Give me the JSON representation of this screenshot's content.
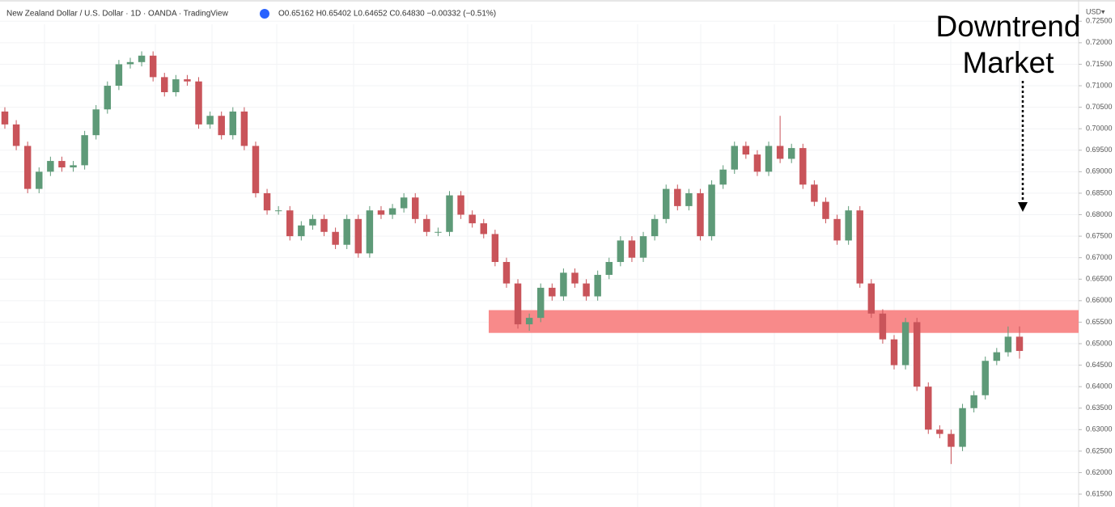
{
  "chart_data": {
    "type": "candlestick",
    "title": "New Zealand Dollar / U.S. Dollar · 1D · OANDA · TradingView",
    "subtitle": "O0.65162 H0.65402 L0.64652 C0.64830 −0.00332 (−0.51%)",
    "currency_label": "USD▾",
    "annotation": [
      "Downtrend",
      "Market"
    ],
    "up_color": "#5e9a78",
    "down_color": "#c9545a",
    "grid": true,
    "zone": {
      "low": 0.6525,
      "high": 0.6578,
      "color": "#f88a8a"
    },
    "ylim": [
      0.612,
      0.7275
    ],
    "yticks": [
      {
        "value": 0.615,
        "label": "0.61500"
      },
      {
        "value": 0.62,
        "label": "0.62000"
      },
      {
        "value": 0.625,
        "label": "0.62500"
      },
      {
        "value": 0.63,
        "label": "0.63000"
      },
      {
        "value": 0.635,
        "label": "0.63500"
      },
      {
        "value": 0.64,
        "label": "0.64000"
      },
      {
        "value": 0.645,
        "label": "0.64500"
      },
      {
        "value": 0.65,
        "label": "0.65000"
      },
      {
        "value": 0.655,
        "label": "0.65500"
      },
      {
        "value": 0.66,
        "label": "0.66000"
      },
      {
        "value": 0.665,
        "label": "0.66500"
      },
      {
        "value": 0.67,
        "label": "0.67000"
      },
      {
        "value": 0.675,
        "label": "0.67500"
      },
      {
        "value": 0.68,
        "label": "0.68000"
      },
      {
        "value": 0.685,
        "label": "0.68500"
      },
      {
        "value": 0.69,
        "label": "0.69000"
      },
      {
        "value": 0.695,
        "label": "0.69500"
      },
      {
        "value": 0.7,
        "label": "0.70000"
      },
      {
        "value": 0.705,
        "label": "0.70500"
      },
      {
        "value": 0.71,
        "label": "0.71000"
      },
      {
        "value": 0.715,
        "label": "0.71500"
      },
      {
        "value": 0.72,
        "label": "0.72000"
      },
      {
        "value": 0.725,
        "label": "0.72500"
      }
    ],
    "open": [
      0.704,
      0.701,
      0.696,
      0.686,
      0.69,
      0.6925,
      0.691,
      0.6915,
      0.6985,
      0.7045,
      0.71,
      0.715,
      0.7155,
      0.717,
      0.712,
      0.7085,
      0.7115,
      0.711,
      0.701,
      0.703,
      0.6985,
      0.704,
      0.696,
      0.685,
      0.681,
      0.681,
      0.675,
      0.6775,
      0.679,
      0.676,
      0.673,
      0.679,
      0.671,
      0.681,
      0.68,
      0.6815,
      0.684,
      0.679,
      0.676,
      0.676,
      0.6845,
      0.68,
      0.678,
      0.6755,
      0.669,
      0.664,
      0.6545,
      0.656,
      0.663,
      0.661,
      0.6665,
      0.664,
      0.661,
      0.666,
      0.669,
      0.674,
      0.67,
      0.675,
      0.679,
      0.686,
      0.682,
      0.685,
      0.675,
      0.687,
      0.6905,
      0.696,
      0.694,
      0.69,
      0.696,
      0.693,
      0.6955,
      0.687,
      0.683,
      0.679,
      0.674,
      0.681,
      0.664,
      0.657,
      0.651,
      0.645,
      0.655,
      0.64,
      0.63,
      0.629,
      0.626,
      0.635,
      0.638,
      0.646,
      0.648,
      0.65162
    ],
    "high": [
      0.705,
      0.702,
      0.697,
      0.691,
      0.6935,
      0.6935,
      0.6925,
      0.6995,
      0.7055,
      0.711,
      0.716,
      0.7165,
      0.718,
      0.718,
      0.713,
      0.7125,
      0.7125,
      0.712,
      0.704,
      0.704,
      0.705,
      0.705,
      0.697,
      0.686,
      0.682,
      0.682,
      0.6785,
      0.68,
      0.68,
      0.677,
      0.68,
      0.68,
      0.682,
      0.682,
      0.6825,
      0.685,
      0.685,
      0.68,
      0.677,
      0.6855,
      0.6855,
      0.681,
      0.679,
      0.6765,
      0.67,
      0.665,
      0.657,
      0.664,
      0.664,
      0.6675,
      0.6675,
      0.665,
      0.667,
      0.67,
      0.675,
      0.675,
      0.676,
      0.68,
      0.687,
      0.687,
      0.686,
      0.686,
      0.688,
      0.6915,
      0.697,
      0.697,
      0.695,
      0.697,
      0.703,
      0.6965,
      0.6965,
      0.688,
      0.684,
      0.68,
      0.682,
      0.682,
      0.665,
      0.658,
      0.652,
      0.656,
      0.656,
      0.641,
      0.631,
      0.63,
      0.636,
      0.639,
      0.647,
      0.649,
      0.654,
      0.65402
    ],
    "low": [
      0.7,
      0.695,
      0.685,
      0.685,
      0.689,
      0.69,
      0.69,
      0.6905,
      0.6975,
      0.7035,
      0.709,
      0.714,
      0.7145,
      0.711,
      0.7075,
      0.7075,
      0.71,
      0.7,
      0.7,
      0.6975,
      0.6975,
      0.695,
      0.684,
      0.68,
      0.68,
      0.674,
      0.674,
      0.6765,
      0.675,
      0.672,
      0.672,
      0.67,
      0.67,
      0.679,
      0.679,
      0.6805,
      0.678,
      0.675,
      0.675,
      0.675,
      0.679,
      0.677,
      0.6745,
      0.668,
      0.663,
      0.6535,
      0.653,
      0.655,
      0.66,
      0.66,
      0.663,
      0.66,
      0.66,
      0.665,
      0.668,
      0.669,
      0.669,
      0.674,
      0.678,
      0.681,
      0.681,
      0.674,
      0.674,
      0.686,
      0.6895,
      0.693,
      0.689,
      0.689,
      0.692,
      0.692,
      0.686,
      0.682,
      0.678,
      0.673,
      0.673,
      0.663,
      0.656,
      0.65,
      0.644,
      0.644,
      0.639,
      0.629,
      0.628,
      0.622,
      0.625,
      0.634,
      0.637,
      0.645,
      0.647,
      0.64652
    ],
    "close": [
      0.701,
      0.696,
      0.686,
      0.69,
      0.6925,
      0.691,
      0.6915,
      0.6985,
      0.7045,
      0.71,
      0.715,
      0.7155,
      0.717,
      0.712,
      0.7085,
      0.7115,
      0.711,
      0.701,
      0.703,
      0.6985,
      0.704,
      0.696,
      0.685,
      0.681,
      0.681,
      0.675,
      0.6775,
      0.679,
      0.676,
      0.673,
      0.679,
      0.671,
      0.681,
      0.68,
      0.6815,
      0.684,
      0.679,
      0.676,
      0.676,
      0.6845,
      0.68,
      0.678,
      0.6755,
      0.669,
      0.664,
      0.6545,
      0.656,
      0.663,
      0.661,
      0.6665,
      0.664,
      0.661,
      0.666,
      0.669,
      0.674,
      0.67,
      0.675,
      0.679,
      0.686,
      0.682,
      0.685,
      0.675,
      0.687,
      0.6905,
      0.696,
      0.694,
      0.69,
      0.696,
      0.693,
      0.6955,
      0.687,
      0.683,
      0.679,
      0.674,
      0.681,
      0.664,
      0.657,
      0.651,
      0.645,
      0.655,
      0.64,
      0.63,
      0.629,
      0.626,
      0.635,
      0.638,
      0.646,
      0.648,
      0.65162,
      0.6483
    ]
  }
}
